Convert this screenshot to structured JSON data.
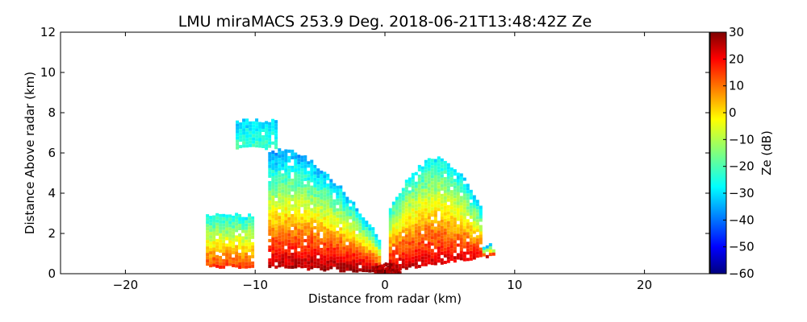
{
  "chart_data": {
    "type": "heatmap",
    "title": "LMU miraMACS 253.9 Deg. 2018-06-21T13:48:42Z  Ze",
    "xlabel": "Distance from radar (km)",
    "ylabel": "Distance Above radar  (km)",
    "xlim": [
      -25,
      25
    ],
    "ylim": [
      0,
      12
    ],
    "xticks": [
      -20,
      -10,
      0,
      10,
      20
    ],
    "yticks": [
      0,
      2,
      4,
      6,
      8,
      10,
      12
    ],
    "grid": false,
    "colorbar": {
      "label": "Ze (dB)",
      "range": [
        -60,
        30
      ],
      "ticks": [
        30,
        20,
        10,
        0,
        -10,
        -20,
        -30,
        -40,
        -50,
        -60
      ],
      "colormap": "jet",
      "position": "right"
    },
    "echo_regions": [
      {
        "x": [
          -13.8,
          -10.2
        ],
        "top_km": 2.8,
        "base_km": 0.4,
        "ze_dB": [
          -25,
          15
        ]
      },
      {
        "x": [
          -11.5,
          -8.3
        ],
        "top_km": 7.5,
        "base_km": 6.3,
        "ze_dB": [
          -30,
          -20
        ]
      },
      {
        "x": [
          -9.0,
          -0.5
        ],
        "top_km": 6.0,
        "base_km": 0.1,
        "ze_dB": [
          -35,
          25
        ]
      },
      {
        "x": [
          0.3,
          8.5
        ],
        "top_km": 5.6,
        "base_km": 0.2,
        "ze_dB": [
          -30,
          20
        ]
      }
    ]
  }
}
